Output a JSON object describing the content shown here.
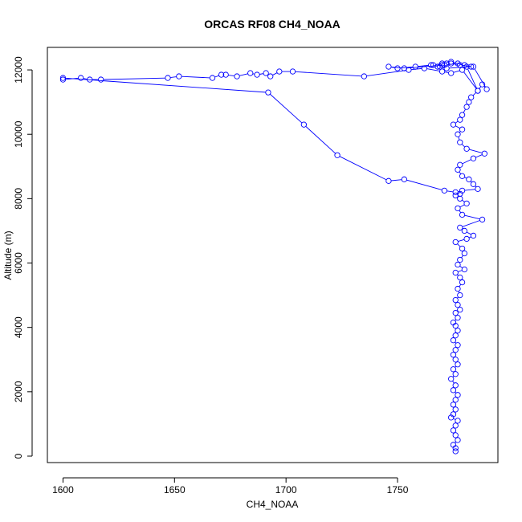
{
  "chart_data": {
    "type": "line",
    "title": "ORCAS RF08 CH4_NOAA",
    "xlabel": "CH4_NOAA",
    "ylabel": "Altitude (m)",
    "xlim": [
      1593,
      1795
    ],
    "ylim": [
      -200,
      12700
    ],
    "x_ticks": [
      1600,
      1650,
      1700,
      1750
    ],
    "y_ticks": [
      0,
      2000,
      4000,
      6000,
      8000,
      10000,
      12000
    ],
    "grid": false,
    "colors": {
      "series": "#0000ff"
    },
    "series": [
      {
        "x": [
          1776,
          1776,
          1775,
          1777,
          1776,
          1775,
          1776,
          1777,
          1774,
          1775,
          1776,
          1775,
          1776,
          1777,
          1775,
          1776,
          1774,
          1776,
          1775,
          1777,
          1776,
          1775,
          1776,
          1777,
          1775,
          1776,
          1777,
          1776,
          1775,
          1777,
          1776,
          1778,
          1777,
          1776,
          1778,
          1777,
          1779,
          1778,
          1776,
          1780,
          1777,
          1778,
          1780,
          1779,
          1776,
          1781,
          1784,
          1780,
          1778,
          1788,
          1779,
          1777,
          1781,
          1778,
          1776,
          1779,
          1786,
          1784,
          1782,
          1779,
          1777,
          1778,
          1784,
          1789,
          1781,
          1778,
          1777,
          1779,
          1775,
          1778,
          1779,
          1781,
          1782,
          1783,
          1786,
          1788,
          1790,
          1784,
          1778,
          1774,
          1772,
          1770,
          1768,
          1766,
          1770,
          1774,
          1780,
          1783,
          1772,
          1769,
          1765,
          1758,
          1750,
          1746,
          1753,
          1771,
          1777,
          1781,
          1786,
          1779,
          1774,
          1770,
          1762,
          1755,
          1735,
          1703,
          1697,
          1693,
          1691,
          1687,
          1684,
          1678,
          1673,
          1671,
          1667,
          1652,
          1647,
          1617,
          1612,
          1608,
          1600,
          1600,
          1692,
          1708,
          1723,
          1746,
          1753,
          1771,
          1776,
          1778
        ],
        "y": [
          150,
          250,
          350,
          500,
          650,
          800,
          950,
          1100,
          1200,
          1300,
          1450,
          1600,
          1750,
          1900,
          2050,
          2200,
          2400,
          2550,
          2700,
          2850,
          3000,
          3150,
          3300,
          3450,
          3600,
          3750,
          3900,
          4050,
          4150,
          4300,
          4450,
          4550,
          4700,
          4850,
          5000,
          5200,
          5400,
          5550,
          5700,
          5800,
          5950,
          6100,
          6300,
          6450,
          6650,
          6750,
          6850,
          7000,
          7100,
          7350,
          7500,
          7700,
          7850,
          8000,
          8100,
          8250,
          8300,
          8450,
          8600,
          8700,
          8900,
          9050,
          9250,
          9400,
          9550,
          9750,
          10000,
          10150,
          10300,
          10450,
          10600,
          10850,
          11000,
          11150,
          11350,
          11550,
          11400,
          12100,
          12150,
          12200,
          12200,
          12150,
          12100,
          12150,
          12200,
          12250,
          12150,
          12100,
          12050,
          12100,
          12150,
          12100,
          12050,
          12100,
          12050,
          12150,
          12200,
          12100,
          11350,
          12000,
          11900,
          11950,
          12050,
          12000,
          11800,
          11950,
          11950,
          11800,
          11900,
          11850,
          11900,
          11800,
          11850,
          11850,
          11750,
          11800,
          11750,
          11700,
          11700,
          11750,
          11700,
          11750,
          11300,
          10300,
          9350,
          8550,
          8600,
          8250,
          8200,
          8150
        ]
      }
    ]
  }
}
